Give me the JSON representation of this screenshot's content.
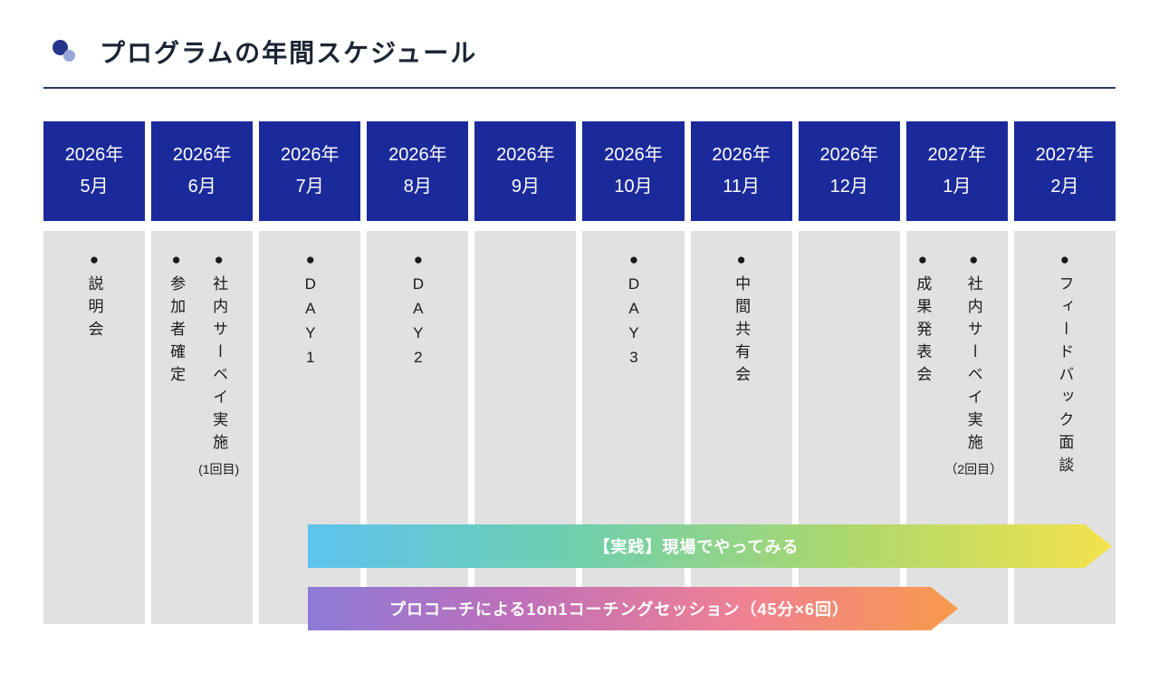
{
  "title": "プログラムの年間スケジュール",
  "theme": {
    "header_bg": "#1b2a9b",
    "column_bg": "#e1e1e1",
    "title_color": "#1b2433",
    "divider_color": "#2a3a66",
    "icon_dark": "#27348b",
    "icon_light": "#97a6d9",
    "arrow_text": "#ffffff",
    "body_text": "#1a1a1a"
  },
  "columns": [
    {
      "year": "2026年",
      "month": "5月",
      "items": [
        {
          "text": "●説明会",
          "note": ""
        }
      ]
    },
    {
      "year": "2026年",
      "month": "6月",
      "items": [
        {
          "text": "●参加者確定",
          "note": ""
        },
        {
          "text": "●社内サーベイ実施",
          "note": "(1回目)"
        }
      ]
    },
    {
      "year": "2026年",
      "month": "7月",
      "items": [
        {
          "text": "●DAY1",
          "note": ""
        }
      ]
    },
    {
      "year": "2026年",
      "month": "8月",
      "items": [
        {
          "text": "●DAY2",
          "note": ""
        }
      ]
    },
    {
      "year": "2026年",
      "month": "9月",
      "items": []
    },
    {
      "year": "2026年",
      "month": "10月",
      "items": [
        {
          "text": "●DAY3",
          "note": ""
        }
      ]
    },
    {
      "year": "2026年",
      "month": "11月",
      "items": [
        {
          "text": "●中間共有会",
          "note": ""
        }
      ]
    },
    {
      "year": "2026年",
      "month": "12月",
      "items": []
    },
    {
      "year": "2027年",
      "month": "1月",
      "items": [
        {
          "text": "●成果発表会",
          "note": ""
        },
        {
          "text": "●社内サーベイ実施",
          "note": "（2回目）"
        }
      ]
    },
    {
      "year": "2027年",
      "month": "2月",
      "items": [
        {
          "text": "●フィードバック面談",
          "note": ""
        }
      ]
    }
  ],
  "arrows": [
    {
      "label": "【実践】現場でやってみる",
      "colors": [
        "#5ec3ee",
        "#6fcfae",
        "#abd86e",
        "#f5e24c"
      ]
    },
    {
      "label": "プロコーチによる1on1コーチングセッション（45分×6回）",
      "colors": [
        "#8d7ad7",
        "#c070b8",
        "#ef8193",
        "#f89a4c"
      ]
    }
  ]
}
